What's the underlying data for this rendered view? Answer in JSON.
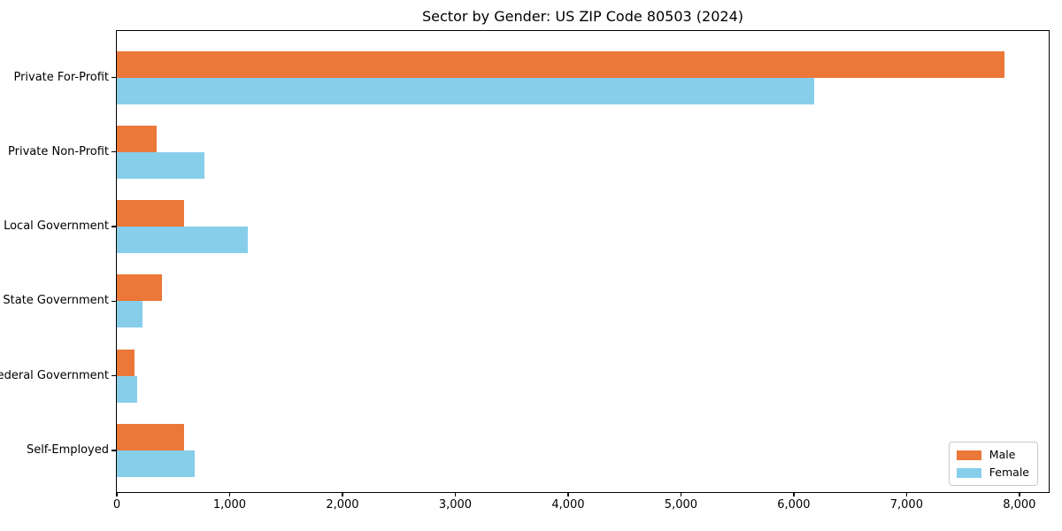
{
  "title": "Sector by Gender: US ZIP Code 80503 (2024)",
  "colors": {
    "male": "#EB7738",
    "female": "#87CEEB",
    "axis": "#000000",
    "legend_border": "#c9c9c9"
  },
  "legend": {
    "position": "lower right",
    "items": [
      {
        "label": "Male",
        "color": "#EB7738"
      },
      {
        "label": "Female",
        "color": "#87CEEB"
      }
    ]
  },
  "chart_data": {
    "type": "bar",
    "orientation": "horizontal",
    "title": "Sector by Gender: US ZIP Code 80503 (2024)",
    "categories": [
      "Private For-Profit",
      "Private Non-Profit",
      "Local Government",
      "State Government",
      "Federal Government",
      "Self-Employed"
    ],
    "series": [
      {
        "name": "Male",
        "color": "#EB7738",
        "values": [
          7870,
          350,
          600,
          400,
          160,
          600
        ]
      },
      {
        "name": "Female",
        "color": "#87CEEB",
        "values": [
          6180,
          775,
          1160,
          230,
          180,
          690
        ]
      }
    ],
    "xlabel": "",
    "ylabel": "",
    "xlim": [
      0,
      8260
    ],
    "x_ticks": [
      0,
      1000,
      2000,
      3000,
      4000,
      5000,
      6000,
      7000,
      8000
    ],
    "x_tick_labels": [
      "0",
      "1,000",
      "2,000",
      "3,000",
      "4,000",
      "5,000",
      "6,000",
      "7,000",
      "8,000"
    ],
    "grid": false,
    "legend_position": "lower right"
  }
}
